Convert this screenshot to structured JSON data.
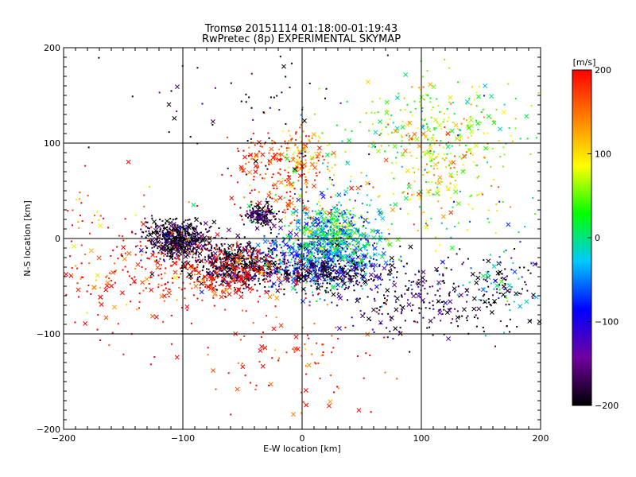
{
  "chart_data": {
    "type": "scatter",
    "title": "Tromsø 20151114 01:18:00-01:19:43",
    "subtitle": "RwPretec (8p) EXPERIMENTAL SKYMAP",
    "xlabel": "E-W location [km]",
    "ylabel": "N-S location [km]",
    "xlim": [
      -200,
      200
    ],
    "ylim": [
      -200,
      200
    ],
    "xticks": [
      "−200",
      "−100",
      "0",
      "100",
      "200"
    ],
    "yticks": [
      "−200",
      "−100",
      "0",
      "100",
      "200"
    ],
    "xtick_values": [
      -200,
      -100,
      0,
      100,
      200
    ],
    "ytick_values": [
      -200,
      -100,
      0,
      100,
      200
    ],
    "grid": true,
    "colorbar": {
      "label": "[m/s]",
      "range": [
        -200,
        200
      ],
      "ticks": [
        "200",
        "100",
        "0",
        "−100",
        "−200"
      ],
      "tick_values": [
        200,
        100,
        0,
        -100,
        -200
      ],
      "colors": [
        "#000000",
        "#7000a0",
        "#0000ff",
        "#00c8ff",
        "#00ff00",
        "#ffff00",
        "#ff8000",
        "#ff0000"
      ]
    },
    "clusters": [
      {
        "x": -105,
        "y": -2,
        "spread": [
          14,
          10
        ],
        "count": 520,
        "velocity": -195
      },
      {
        "x": -55,
        "y": -28,
        "spread": [
          18,
          12
        ],
        "count": 500,
        "velocity": -195
      },
      {
        "x": -35,
        "y": 25,
        "spread": [
          7,
          6
        ],
        "count": 160,
        "velocity": -190
      },
      {
        "x": 20,
        "y": -15,
        "spread": [
          22,
          20
        ],
        "count": 700,
        "velocity": -60
      },
      {
        "x": 25,
        "y": 5,
        "spread": [
          18,
          15
        ],
        "count": 350,
        "velocity": 10
      },
      {
        "x": 15,
        "y": -35,
        "spread": [
          25,
          10
        ],
        "count": 300,
        "velocity": -195
      },
      {
        "x": -70,
        "y": -35,
        "spread": [
          30,
          15
        ],
        "count": 300,
        "velocity": 195
      },
      {
        "x": -20,
        "y": 70,
        "spread": [
          20,
          25
        ],
        "count": 200,
        "velocity": 180
      },
      {
        "x": 110,
        "y": 120,
        "spread": [
          35,
          25
        ],
        "count": 250,
        "velocity": 60
      },
      {
        "x": 120,
        "y": 70,
        "spread": [
          25,
          30
        ],
        "count": 150,
        "velocity": 110
      },
      {
        "x": 0,
        "y": 90,
        "spread": [
          15,
          12
        ],
        "count": 80,
        "velocity": 130
      },
      {
        "x": -150,
        "y": -30,
        "spread": [
          35,
          40
        ],
        "count": 200,
        "velocity": 190
      },
      {
        "x": 150,
        "y": -60,
        "spread": [
          40,
          25
        ],
        "count": 200,
        "velocity": -195
      },
      {
        "x": 80,
        "y": -60,
        "spread": [
          25,
          20
        ],
        "count": 120,
        "velocity": -170
      },
      {
        "x": 0,
        "y": -120,
        "spread": [
          40,
          30
        ],
        "count": 100,
        "velocity": 190
      },
      {
        "x": 170,
        "y": -40,
        "spread": [
          20,
          25
        ],
        "count": 60,
        "velocity": -20
      },
      {
        "x": -60,
        "y": 140,
        "spread": [
          50,
          40
        ],
        "count": 60,
        "velocity": -190
      },
      {
        "x": 50,
        "y": 40,
        "spread": [
          60,
          40
        ],
        "count": 120,
        "velocity": 10
      }
    ],
    "cross_fraction": 0.22,
    "random_seed": 20151114
  }
}
